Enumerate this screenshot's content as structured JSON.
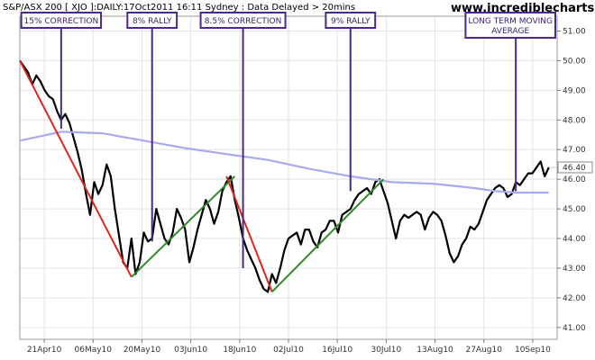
{
  "chart_data": {
    "type": "line",
    "header": "S&P/ASX 200  [ XJO ]:DAILY:17Oct2011 16:11 Sydney : Data Delayed > 20mins",
    "brand": "www.incrediblecharts.com",
    "x_labels": [
      "21Apr10",
      "06May10",
      "20May10",
      "03Jun10",
      "18Jun10",
      "02Jul10",
      "16Jul10",
      "30Jul10",
      "13Aug10",
      "27Aug10",
      "10Sep10"
    ],
    "y_ticks": [
      41.0,
      42.0,
      43.0,
      44.0,
      45.0,
      46.0,
      47.0,
      48.0,
      49.0,
      50.0,
      51.0
    ],
    "ylim": [
      40.6,
      51.5
    ],
    "xlim": [
      0,
      130
    ],
    "grid": true,
    "colors": {
      "price": "#000000",
      "moving_average": "#a9a9f0",
      "correction": "#e0271a",
      "rally": "#2f8a2a",
      "annotation": "#4a2a86",
      "grid": "#e3e3e3"
    },
    "series": [
      {
        "role": "price",
        "x": [
          0,
          1,
          2,
          3,
          4,
          5,
          6,
          7,
          8,
          9,
          10,
          11,
          12,
          13,
          14,
          15,
          16,
          17,
          18,
          19,
          20,
          21,
          22,
          23,
          24,
          25,
          26,
          27,
          28,
          29,
          30,
          31,
          32,
          33,
          34,
          35,
          36,
          37,
          38,
          39,
          40,
          41,
          42,
          43,
          44,
          45,
          46,
          47,
          48,
          49,
          50,
          51,
          52,
          53,
          54,
          55,
          56,
          57,
          58,
          59,
          60,
          61,
          62,
          63,
          64,
          65,
          66,
          67,
          68,
          69,
          70,
          71,
          72,
          73,
          74,
          75,
          76,
          77,
          78,
          79,
          80,
          81,
          82,
          83,
          84,
          85,
          86,
          87,
          88,
          89,
          90,
          91,
          92,
          93,
          94,
          95,
          96,
          97,
          98,
          99,
          100,
          101,
          102,
          103,
          104,
          105,
          106,
          107,
          108,
          109,
          110,
          111,
          112,
          113,
          114,
          115,
          116,
          117,
          118,
          119,
          120,
          121,
          122,
          123,
          124,
          125,
          126,
          127,
          128
        ],
        "values": [
          50.0,
          49.8,
          49.6,
          49.2,
          49.5,
          49.3,
          49.0,
          48.8,
          48.7,
          48.3,
          48.0,
          48.2,
          47.9,
          47.4,
          46.9,
          46.3,
          45.5,
          44.8,
          45.9,
          45.5,
          45.8,
          46.5,
          46.1,
          45.0,
          44.1,
          43.2,
          43.0,
          44.0,
          42.8,
          43.2,
          44.2,
          43.9,
          44.0,
          45.0,
          44.5,
          44.0,
          43.8,
          44.2,
          45.0,
          44.7,
          44.3,
          43.2,
          43.7,
          44.3,
          44.8,
          45.3,
          45.0,
          44.5,
          44.9,
          45.6,
          45.9,
          46.1,
          45.3,
          44.7,
          44.0,
          43.6,
          43.3,
          43.0,
          42.6,
          42.3,
          42.2,
          42.8,
          42.5,
          43.0,
          43.6,
          44.0,
          44.1,
          44.2,
          43.8,
          44.3,
          44.3,
          43.9,
          43.7,
          44.2,
          44.3,
          44.6,
          44.6,
          44.2,
          44.8,
          44.9,
          45.0,
          45.3,
          45.5,
          45.6,
          45.7,
          45.5,
          45.9,
          46.0,
          45.6,
          45.2,
          44.6,
          44.0,
          44.6,
          44.8,
          44.7,
          44.8,
          44.9,
          44.8,
          44.3,
          44.7,
          44.9,
          44.8,
          44.6,
          44.1,
          43.5,
          43.2,
          43.4,
          43.8,
          44.0,
          44.4,
          44.3,
          44.5,
          44.9,
          45.3,
          45.5,
          45.7,
          45.8,
          45.7,
          45.4,
          45.5,
          45.9,
          45.8,
          46.0,
          46.2,
          46.2,
          46.4,
          46.6,
          46.1,
          46.4
        ],
        "last_value": 46.4
      },
      {
        "role": "moving_average",
        "x": [
          0,
          10,
          20,
          30,
          40,
          50,
          60,
          70,
          80,
          90,
          100,
          110,
          115,
          120,
          128
        ],
        "values": [
          47.3,
          47.6,
          47.55,
          47.3,
          47.05,
          46.85,
          46.65,
          46.35,
          46.1,
          45.9,
          45.85,
          45.7,
          45.6,
          45.55,
          45.55
        ]
      }
    ],
    "trend_lines": [
      {
        "role": "correction",
        "x": [
          0,
          27
        ],
        "values": [
          50.0,
          42.7
        ]
      },
      {
        "role": "rally",
        "x": [
          27,
          52
        ],
        "values": [
          42.7,
          46.1
        ]
      },
      {
        "role": "correction",
        "x": [
          50,
          61
        ],
        "values": [
          46.1,
          42.2
        ]
      },
      {
        "role": "rally",
        "x": [
          61,
          88
        ],
        "values": [
          42.2,
          46.0
        ]
      }
    ],
    "annotations": [
      {
        "label": "15% CORRECTION",
        "x": 10,
        "y": 47.7
      },
      {
        "label": "8% RALLY",
        "x": 32,
        "y": 43.9
      },
      {
        "label": "8.5% CORRECTION",
        "x": 54,
        "y": 43.0
      },
      {
        "label": "9% RALLY",
        "x": 80,
        "y": 45.6
      },
      {
        "label": "LONG TERM MOVING AVERAGE",
        "lines": [
          "LONG TERM MOVING",
          "AVERAGE"
        ],
        "x": 120,
        "y": 45.6
      }
    ]
  }
}
